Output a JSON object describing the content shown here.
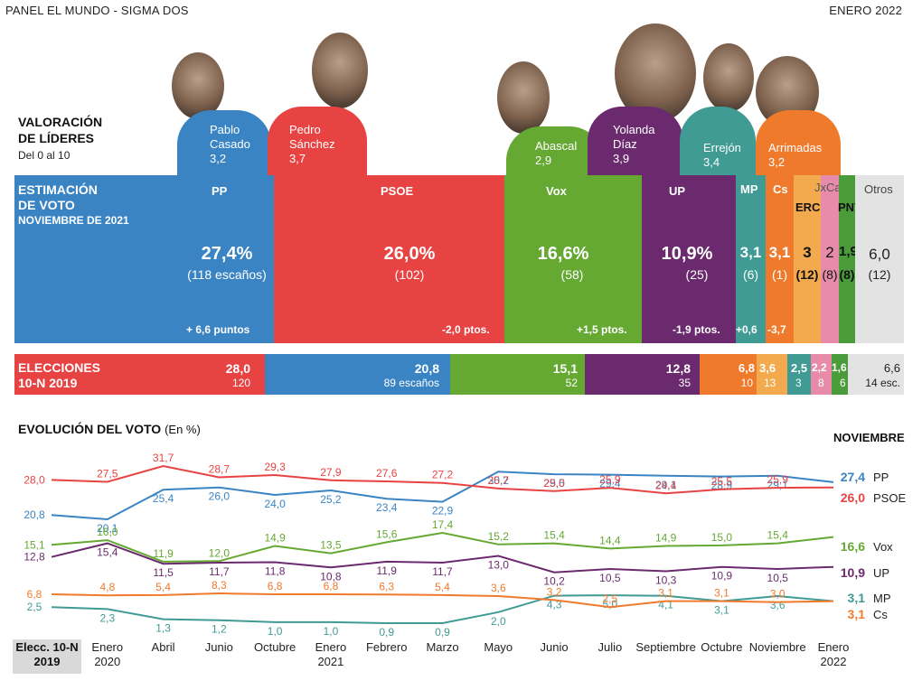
{
  "header": {
    "left": "PANEL EL MUNDO - SIGMA DOS",
    "right": "ENERO 2022"
  },
  "leaders": {
    "title_line1": "VALORACIÓN",
    "title_line2": "DE LÍDERES",
    "subtitle": "Del 0 al 10",
    "items": [
      {
        "name_line1": "Pablo",
        "name_line2": "Casado",
        "score": "3,2",
        "color": "#3a84c4"
      },
      {
        "name_line1": "Pedro",
        "name_line2": "Sánchez",
        "score": "3,7",
        "color": "#e84343"
      },
      {
        "name_line1": "",
        "name_line2": "Abascal",
        "score": "2,9",
        "color": "#65a832"
      },
      {
        "name_line1": "Yolanda",
        "name_line2": "Díaz",
        "score": "3,9",
        "color": "#6a2a6d"
      },
      {
        "name_line1": "",
        "name_line2": "Errejón",
        "score": "3,4",
        "color": "#3f9b94"
      },
      {
        "name_line1": "",
        "name_line2": "Arrimadas",
        "score": "3,2",
        "color": "#f07a2c"
      }
    ]
  },
  "estimate": {
    "title_line1": "ESTIMACIÓN",
    "title_line2": "DE VOTO",
    "title_line3": "NOVIEMBRE DE 2021",
    "parties": [
      {
        "party": "PP",
        "pct": "27,4%",
        "seats": "(118 escaños)",
        "change": "+ 6,6 puntos",
        "color": "#3a84c4"
      },
      {
        "party": "PSOE",
        "pct": "26,0%",
        "seats": "(102)",
        "change": "-2,0 ptos.",
        "color": "#e84343"
      },
      {
        "party": "Vox",
        "pct": "16,6%",
        "seats": "(58)",
        "change": "+1,5 ptos.",
        "color": "#65a832"
      },
      {
        "party": "UP",
        "pct": "10,9%",
        "seats": "(25)",
        "change": "-1,9 ptos.",
        "color": "#6a2a6d"
      },
      {
        "party": "MP",
        "pct": "3,1",
        "seats": "(6)",
        "change": "+0,6",
        "color": "#3f9b94"
      },
      {
        "party": "Cs",
        "pct": "3,1",
        "seats": "(1)",
        "change": "-3,7",
        "color": "#f07a2c"
      },
      {
        "party": "ERC",
        "pct": "3",
        "seats": "(12)",
        "change": "",
        "color": "#f3a94d"
      },
      {
        "party": "JxCat",
        "pct": "2",
        "seats": "(8)",
        "change": "",
        "color": "#e88bab"
      },
      {
        "party": "PNV",
        "pct": "1,9",
        "seats": "(8)",
        "change": "",
        "color": "#4a9b3a"
      },
      {
        "party": "Otros",
        "pct": "6,0",
        "seats": "(12)",
        "change": "",
        "color": "#e3e3e3"
      }
    ]
  },
  "election": {
    "title_line1": "ELECCIONES",
    "title_line2": "10-N  2019",
    "parties": [
      {
        "pct": "28,0",
        "seats": "120",
        "color": "#e84343"
      },
      {
        "pct": "20,8",
        "seats": "89 escaños",
        "color": "#3a84c4"
      },
      {
        "pct": "15,1",
        "seats": "52",
        "color": "#65a832"
      },
      {
        "pct": "12,8",
        "seats": "35",
        "color": "#6a2a6d"
      },
      {
        "pct": "6,8",
        "seats": "10",
        "color": "#f07a2c"
      },
      {
        "pct": "3,6",
        "seats": "13",
        "color": "#f3a94d"
      },
      {
        "pct": "2,5",
        "seats": "3",
        "color": "#3f9b94"
      },
      {
        "pct": "2,2",
        "seats": "8",
        "color": "#e88bab"
      },
      {
        "pct": "1,6",
        "seats": "6",
        "color": "#4a9b3a"
      },
      {
        "pct": "6,6",
        "seats": "14 esc.",
        "color": "#e3e3e3"
      }
    ]
  },
  "evolution": {
    "title": "EVOLUCIÓN DEL VOTO",
    "unit": "(En %)",
    "latest_label": "NOVIEMBRE",
    "first_label_line1": "Elecc. 10-N",
    "first_label_line2": "2019"
  },
  "chart_data": {
    "type": "line",
    "title": "EVOLUCIÓN DEL VOTO",
    "ylabel": "(En %)",
    "categories": [
      [
        "Elecc. 10-N",
        "2019"
      ],
      [
        "Enero",
        "2020"
      ],
      [
        "Abril",
        ""
      ],
      [
        "Junio",
        ""
      ],
      [
        "Octubre",
        ""
      ],
      [
        "Enero",
        "2021"
      ],
      [
        "Febrero",
        ""
      ],
      [
        "Marzo",
        ""
      ],
      [
        "Mayo",
        ""
      ],
      [
        "Junio",
        ""
      ],
      [
        "Julio",
        ""
      ],
      [
        "Septiembre",
        ""
      ],
      [
        "Octubre",
        ""
      ],
      [
        "Noviembre",
        ""
      ],
      [
        "Enero",
        "2022"
      ]
    ],
    "series": [
      {
        "name": "PP",
        "color": "#3a84c4",
        "values": [
          20.8,
          20.1,
          25.4,
          26.0,
          24.0,
          25.2,
          23.4,
          22.9,
          30.2,
          29.5,
          29.4,
          29.1,
          28.9,
          29.1,
          27.4
        ],
        "labels": [
          "20,8",
          "20,1",
          "25,4",
          "26,0",
          "24,0",
          "25,2",
          "23,4",
          "22,9",
          "30,2",
          "29,5",
          "29,4",
          "29,1",
          "28,9",
          "29,1",
          "27,4"
        ]
      },
      {
        "name": "PSOE",
        "color": "#e84343",
        "values": [
          28.0,
          27.5,
          31.7,
          28.7,
          29.3,
          27.9,
          27.6,
          27.2,
          25.7,
          25.0,
          25.9,
          24.4,
          25.5,
          25.9,
          26.0
        ],
        "labels": [
          "28,0",
          "27,5",
          "31,7",
          "28,7",
          "29,3",
          "27,9",
          "27,6",
          "27,2",
          "25,7",
          "25,0",
          "25,9",
          "24,4",
          "25,5",
          "25,9",
          "26,0"
        ]
      },
      {
        "name": "Vox",
        "color": "#65a832",
        "values": [
          15.1,
          16.0,
          11.9,
          12.0,
          14.9,
          13.5,
          15.6,
          17.4,
          15.2,
          15.4,
          14.4,
          14.9,
          15.0,
          15.4,
          16.6
        ],
        "labels": [
          "15,1",
          "16,0",
          "11,9",
          "12,0",
          "14,9",
          "13,5",
          "15,6",
          "17,4",
          "15,2",
          "15,4",
          "14,4",
          "14,9",
          "15,0",
          "15,4",
          "16,6"
        ]
      },
      {
        "name": "UP",
        "color": "#6a2a6d",
        "values": [
          12.8,
          15.4,
          11.5,
          11.7,
          11.8,
          10.8,
          11.9,
          11.7,
          13.0,
          10.2,
          10.5,
          10.3,
          10.9,
          10.5,
          10.9
        ],
        "labels": [
          "12,8",
          "15,4",
          "11,5",
          "11,7",
          "11,8",
          "10,8",
          "11,9",
          "11,7",
          "13,0",
          "10,2",
          "10,5",
          "10,3",
          "10,9",
          "10,5",
          "10,9"
        ]
      },
      {
        "name": "MP",
        "color": "#3f9b94",
        "values": [
          2.5,
          2.3,
          1.3,
          1.2,
          1.0,
          1.0,
          0.9,
          0.9,
          2.0,
          4.3,
          5.0,
          4.1,
          3.1,
          3.6,
          3.1
        ],
        "labels": [
          "2,5",
          "2,3",
          "1,3",
          "1,2",
          "1,0",
          "1,0",
          "0,9",
          "0,9",
          "2,0",
          "4,3",
          "5,0",
          "4,1",
          "3,1",
          "3,6",
          "3,1"
        ]
      },
      {
        "name": "Cs",
        "color": "#f07a2c",
        "values": [
          6.8,
          4.8,
          5.4,
          8.3,
          6.8,
          6.8,
          6.3,
          5.4,
          3.6,
          3.2,
          2.5,
          3.1,
          3.1,
          3.0,
          3.1
        ],
        "labels": [
          "6,8",
          "4,8",
          "5,4",
          "8,3",
          "6,8",
          "6,8",
          "6,3",
          "5,4",
          "3,6",
          "3,2",
          "2,5",
          "3,1",
          "3,1",
          "3,0",
          "3,1"
        ]
      }
    ]
  }
}
